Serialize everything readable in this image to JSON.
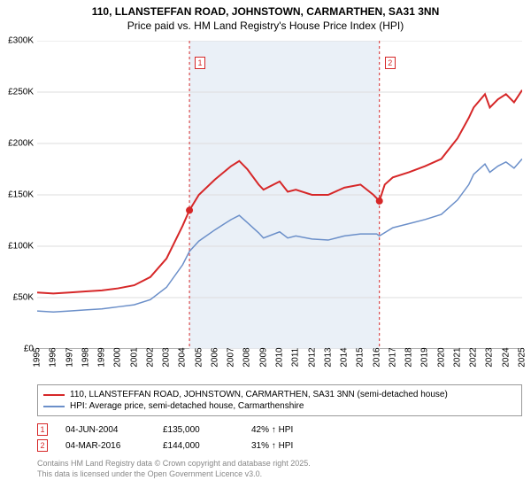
{
  "title": {
    "line1": "110, LLANSTEFFAN ROAD, JOHNSTOWN, CARMARTHEN, SA31 3NN",
    "line2": "Price paid vs. HM Land Registry's House Price Index (HPI)"
  },
  "chart": {
    "type": "line",
    "background_color": "#ffffff",
    "shade_color": "#eaf0f7",
    "grid_color": "#dddddd",
    "x": {
      "min": 1995,
      "max": 2025,
      "ticks": [
        1995,
        1996,
        1997,
        1998,
        1999,
        2000,
        2001,
        2002,
        2003,
        2004,
        2005,
        2006,
        2007,
        2008,
        2009,
        2010,
        2011,
        2012,
        2013,
        2014,
        2015,
        2016,
        2017,
        2018,
        2019,
        2020,
        2021,
        2022,
        2023,
        2024,
        2025
      ]
    },
    "y": {
      "min": 0,
      "max": 300000,
      "ticks": [
        0,
        50000,
        100000,
        150000,
        200000,
        250000,
        300000
      ],
      "labels": [
        "£0",
        "£50K",
        "£100K",
        "£150K",
        "£200K",
        "£250K",
        "£300K"
      ]
    },
    "series": [
      {
        "name": "property",
        "label": "110, LLANSTEFFAN ROAD, JOHNSTOWN, CARMARTHEN, SA31 3NN (semi-detached house)",
        "color": "#d62728",
        "line_width": 2,
        "data": [
          [
            1995,
            55000
          ],
          [
            1996,
            54000
          ],
          [
            1997,
            55000
          ],
          [
            1998,
            56000
          ],
          [
            1999,
            57000
          ],
          [
            2000,
            59000
          ],
          [
            2001,
            62000
          ],
          [
            2002,
            70000
          ],
          [
            2003,
            88000
          ],
          [
            2004,
            120000
          ],
          [
            2004.42,
            135000
          ],
          [
            2005,
            150000
          ],
          [
            2006,
            165000
          ],
          [
            2007,
            178000
          ],
          [
            2007.5,
            183000
          ],
          [
            2008,
            175000
          ],
          [
            2008.7,
            160000
          ],
          [
            2009,
            155000
          ],
          [
            2010,
            163000
          ],
          [
            2010.5,
            153000
          ],
          [
            2011,
            155000
          ],
          [
            2012,
            150000
          ],
          [
            2013,
            150000
          ],
          [
            2014,
            157000
          ],
          [
            2015,
            160000
          ],
          [
            2015.8,
            150000
          ],
          [
            2016.17,
            144000
          ],
          [
            2016.5,
            160000
          ],
          [
            2017,
            167000
          ],
          [
            2018,
            172000
          ],
          [
            2019,
            178000
          ],
          [
            2020,
            185000
          ],
          [
            2021,
            205000
          ],
          [
            2021.7,
            225000
          ],
          [
            2022,
            235000
          ],
          [
            2022.7,
            248000
          ],
          [
            2023,
            235000
          ],
          [
            2023.5,
            243000
          ],
          [
            2024,
            248000
          ],
          [
            2024.5,
            240000
          ],
          [
            2025,
            252000
          ]
        ]
      },
      {
        "name": "hpi",
        "label": "HPI: Average price, semi-detached house, Carmarthenshire",
        "color": "#6b8fc9",
        "line_width": 1.5,
        "data": [
          [
            1995,
            37000
          ],
          [
            1996,
            36000
          ],
          [
            1997,
            37000
          ],
          [
            1998,
            38000
          ],
          [
            1999,
            39000
          ],
          [
            2000,
            41000
          ],
          [
            2001,
            43000
          ],
          [
            2002,
            48000
          ],
          [
            2003,
            60000
          ],
          [
            2004,
            82000
          ],
          [
            2004.42,
            95000
          ],
          [
            2005,
            105000
          ],
          [
            2006,
            116000
          ],
          [
            2007,
            126000
          ],
          [
            2007.5,
            130000
          ],
          [
            2008,
            123000
          ],
          [
            2008.7,
            113000
          ],
          [
            2009,
            108000
          ],
          [
            2010,
            114000
          ],
          [
            2010.5,
            108000
          ],
          [
            2011,
            110000
          ],
          [
            2012,
            107000
          ],
          [
            2013,
            106000
          ],
          [
            2014,
            110000
          ],
          [
            2015,
            112000
          ],
          [
            2016,
            112000
          ],
          [
            2016.17,
            110000
          ],
          [
            2017,
            118000
          ],
          [
            2018,
            122000
          ],
          [
            2019,
            126000
          ],
          [
            2020,
            131000
          ],
          [
            2021,
            145000
          ],
          [
            2021.7,
            160000
          ],
          [
            2022,
            170000
          ],
          [
            2022.7,
            180000
          ],
          [
            2023,
            172000
          ],
          [
            2023.5,
            178000
          ],
          [
            2024,
            182000
          ],
          [
            2024.5,
            176000
          ],
          [
            2025,
            185000
          ]
        ]
      }
    ],
    "markers": [
      {
        "label": "1",
        "x": 2004.42,
        "y": 135000,
        "color": "#d62728"
      },
      {
        "label": "2",
        "x": 2016.17,
        "y": 144000,
        "color": "#d62728"
      }
    ],
    "shade_range": [
      2004.42,
      2016.17
    ]
  },
  "legend": {
    "items": [
      {
        "color": "#d62728",
        "label": "110, LLANSTEFFAN ROAD, JOHNSTOWN, CARMARTHEN, SA31 3NN (semi-detached house)"
      },
      {
        "color": "#6b8fc9",
        "label": "HPI: Average price, semi-detached house, Carmarthenshire"
      }
    ]
  },
  "sales": [
    {
      "marker": "1",
      "date": "04-JUN-2004",
      "price": "£135,000",
      "hpi": "42% ↑ HPI"
    },
    {
      "marker": "2",
      "date": "04-MAR-2016",
      "price": "£144,000",
      "hpi": "31% ↑ HPI"
    }
  ],
  "footer": {
    "line1": "Contains HM Land Registry data © Crown copyright and database right 2025.",
    "line2": "This data is licensed under the Open Government Licence v3.0."
  }
}
